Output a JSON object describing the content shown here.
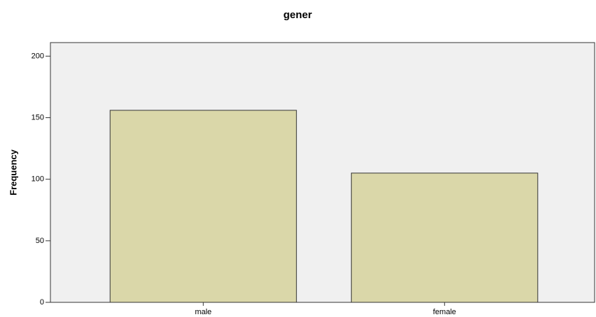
{
  "chart_data": {
    "type": "bar",
    "title": "gener",
    "y_label": "Frequency",
    "categories": [
      "male",
      "female"
    ],
    "values": [
      156,
      105
    ],
    "color": "#d6d29c",
    "ylim": [
      0,
      211
    ],
    "yticks": [
      0,
      50,
      100,
      150,
      200
    ],
    "grid": false
  }
}
